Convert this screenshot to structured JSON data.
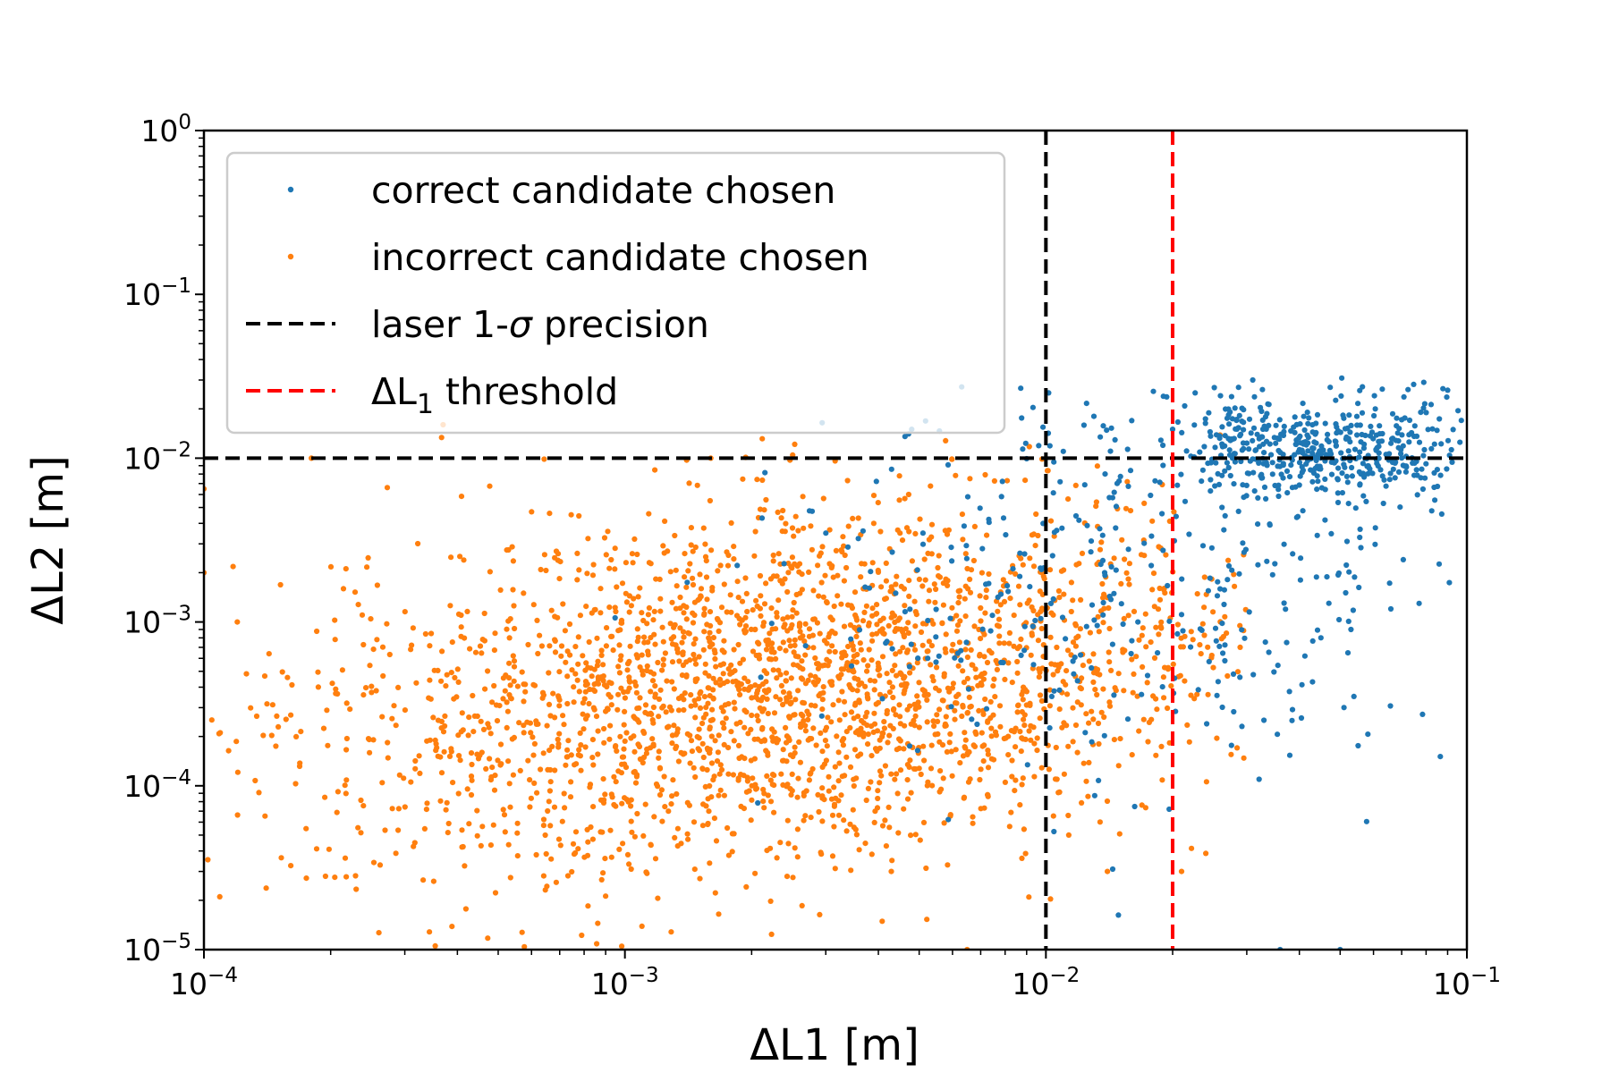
{
  "chart_data": {
    "type": "scatter",
    "xscale": "log",
    "yscale": "log",
    "xlim": [
      0.0001,
      0.1
    ],
    "ylim": [
      1e-05,
      1
    ],
    "xlabel": "ΔL1 [m]",
    "ylabel": "ΔL2 [m]",
    "xticks": [
      {
        "value": 0.0001,
        "base": "10",
        "exp": "−4"
      },
      {
        "value": 0.001,
        "base": "10",
        "exp": "−3"
      },
      {
        "value": 0.01,
        "base": "10",
        "exp": "−2"
      },
      {
        "value": 0.1,
        "base": "10",
        "exp": "−1"
      }
    ],
    "yticks": [
      {
        "value": 1e-05,
        "base": "10",
        "exp": "−5"
      },
      {
        "value": 0.0001,
        "base": "10",
        "exp": "−4"
      },
      {
        "value": 0.001,
        "base": "10",
        "exp": "−3"
      },
      {
        "value": 0.01,
        "base": "10",
        "exp": "−2"
      },
      {
        "value": 0.1,
        "base": "10",
        "exp": "−1"
      },
      {
        "value": 1,
        "base": "10",
        "exp": "0"
      }
    ],
    "colors": {
      "correct": "#1f77b4",
      "incorrect": "#ff7f0e",
      "laser_line": "#000000",
      "threshold_line": "#ff0000"
    },
    "series": [
      {
        "name": "correct candidate chosen",
        "key": "correct",
        "approx_count": 900,
        "distribution": {
          "log10_x_mean": -1.7,
          "log10_x_std": 0.45,
          "log10_y_mean": -2.5,
          "log10_y_std": 0.7,
          "dense_cluster": {
            "x_range": [
              0.025,
              0.08
            ],
            "y_center": 0.011
          }
        },
        "points": [
          [
            0.031,
            0.03
          ],
          [
            0.09,
            0.026
          ],
          [
            0.097,
            0.017
          ],
          [
            0.047,
            0.0013
          ],
          [
            0.05,
            1e-05
          ],
          [
            0.036,
            1e-05
          ],
          [
            0.02,
            0.015
          ],
          [
            0.013,
            0.018
          ],
          [
            0.011,
            0.011
          ],
          [
            0.0048,
            0.015
          ]
        ]
      },
      {
        "name": "incorrect candidate chosen",
        "key": "incorrect",
        "approx_count": 2600,
        "distribution": {
          "log10_x_mean": -2.6,
          "log10_x_std": 0.55,
          "log10_y_mean": -3.4,
          "log10_y_std": 0.55
        },
        "points": [
          [
            0.0001,
            0.0065
          ],
          [
            0.0001,
            0.002
          ],
          [
            0.00012,
            0.001
          ],
          [
            0.00018,
            0.01
          ],
          [
            0.00037,
            0.016
          ],
          [
            0.0016,
            0.01
          ],
          [
            0.0066,
            0.0075
          ],
          [
            0.014,
            3e-05
          ],
          [
            0.021,
            3e-05
          ],
          [
            0.0065,
            1e-05
          ]
        ]
      }
    ],
    "reference_lines": [
      {
        "name": "laser 1-σ precision",
        "orientation": "vertical",
        "value": 0.01,
        "style": "dashed",
        "color": "#000000"
      },
      {
        "name": "laser 1-σ precision",
        "orientation": "horizontal",
        "value": 0.01,
        "style": "dashed",
        "color": "#000000"
      },
      {
        "name": "ΔL1 threshold",
        "orientation": "vertical",
        "value": 0.02,
        "style": "dashed",
        "color": "#ff0000"
      }
    ],
    "legend": {
      "placement": "upper-left",
      "entries": [
        {
          "label": "correct candidate chosen",
          "kind": "marker",
          "color": "#1f77b4"
        },
        {
          "label": "incorrect candidate chosen",
          "kind": "marker",
          "color": "#ff7f0e"
        },
        {
          "label_main": "laser 1-",
          "label_symbol": "σ",
          "label_tail": " precision",
          "kind": "dashed-line",
          "color": "#000000"
        },
        {
          "label_main": "ΔL",
          "label_sub": "1",
          "label_tail": " threshold",
          "kind": "dashed-line",
          "color": "#ff0000"
        }
      ]
    }
  }
}
